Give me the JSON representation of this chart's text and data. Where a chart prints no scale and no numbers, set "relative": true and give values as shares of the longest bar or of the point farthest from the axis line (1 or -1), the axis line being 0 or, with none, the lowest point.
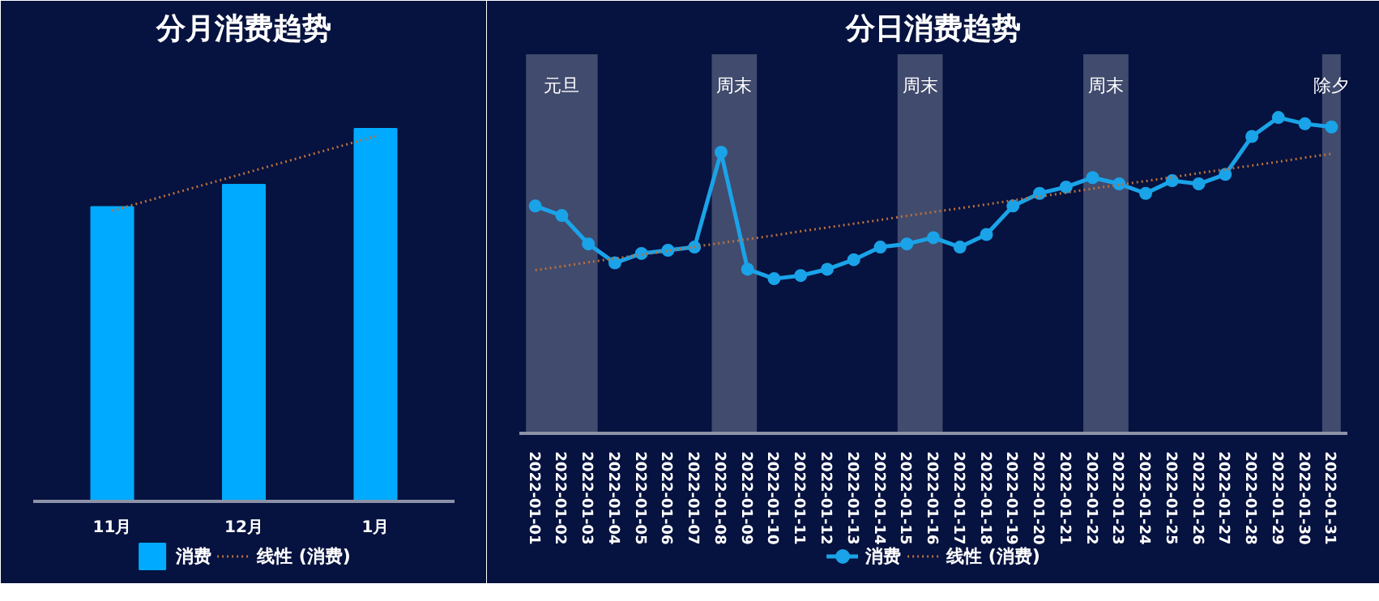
{
  "chart_data": [
    {
      "type": "bar",
      "title": "分月消费趋势",
      "categories": [
        "11月",
        "12月",
        "1月"
      ],
      "relative": true,
      "legend": "bottom",
      "grid": false,
      "series": [
        {
          "name": "消费",
          "color": "#00aaff",
          "values": [
            0.79,
            0.85,
            1
          ]
        },
        {
          "name": "线性 (消费)",
          "type": "line",
          "line_style": "dotted",
          "color": "#b8703c",
          "values": [
            0.78,
            0.88,
            0.98
          ]
        }
      ]
    },
    {
      "type": "line",
      "title": "分日消费趋势",
      "categories": [
        "2022-01-01",
        "2022-01-02",
        "2022-01-03",
        "2022-01-04",
        "2022-01-05",
        "2022-01-06",
        "2022-01-07",
        "2022-01-08",
        "2022-01-09",
        "2022-01-10",
        "2022-01-11",
        "2022-01-12",
        "2022-01-13",
        "2022-01-14",
        "2022-01-15",
        "2022-01-16",
        "2022-01-17",
        "2022-01-18",
        "2022-01-19",
        "2022-01-20",
        "2022-01-21",
        "2022-01-22",
        "2022-01-23",
        "2022-01-24",
        "2022-01-25",
        "2022-01-26",
        "2022-01-27",
        "2022-01-28",
        "2022-01-29",
        "2022-01-30",
        "2022-01-31"
      ],
      "relative": true,
      "legend": "bottom",
      "grid": false,
      "marker": "circle",
      "bands": [
        {
          "axis": "x",
          "from": "2022-01-01",
          "to": "2022-01-03",
          "label": "元旦",
          "color": "#8a93a8"
        },
        {
          "axis": "x",
          "from": "2022-01-08",
          "to": "2022-01-09",
          "label": "周末",
          "color": "#8a93a8"
        },
        {
          "axis": "x",
          "from": "2022-01-15",
          "to": "2022-01-16",
          "label": "周末",
          "color": "#8a93a8"
        },
        {
          "axis": "x",
          "from": "2022-01-22",
          "to": "2022-01-23",
          "label": "周末",
          "color": "#8a93a8"
        },
        {
          "axis": "x",
          "from": "2022-01-31",
          "to": "2022-01-31",
          "label": "除夕",
          "color": "#8a93a8"
        }
      ],
      "series": [
        {
          "name": "消费",
          "color": "#1aa3e8",
          "values": [
            0.72,
            0.69,
            0.6,
            0.54,
            0.57,
            0.58,
            0.59,
            0.89,
            0.52,
            0.49,
            0.5,
            0.52,
            0.55,
            0.59,
            0.6,
            0.62,
            0.59,
            0.63,
            0.72,
            0.76,
            0.78,
            0.81,
            0.79,
            0.76,
            0.8,
            0.79,
            0.82,
            0.94,
            1,
            0.98,
            0.97
          ]
        },
        {
          "name": "线性 (消费)",
          "type": "line",
          "line_style": "dotted",
          "marker": "none",
          "color": "#b8703c",
          "values": [
            0.517,
            0.529,
            0.542,
            0.554,
            0.566,
            0.578,
            0.591,
            0.603,
            0.615,
            0.627,
            0.64,
            0.652,
            0.664,
            0.676,
            0.689,
            0.701,
            0.713,
            0.725,
            0.738,
            0.75,
            0.762,
            0.775,
            0.787,
            0.799,
            0.811,
            0.824,
            0.836,
            0.848,
            0.86,
            0.873,
            0.885
          ]
        }
      ]
    }
  ]
}
